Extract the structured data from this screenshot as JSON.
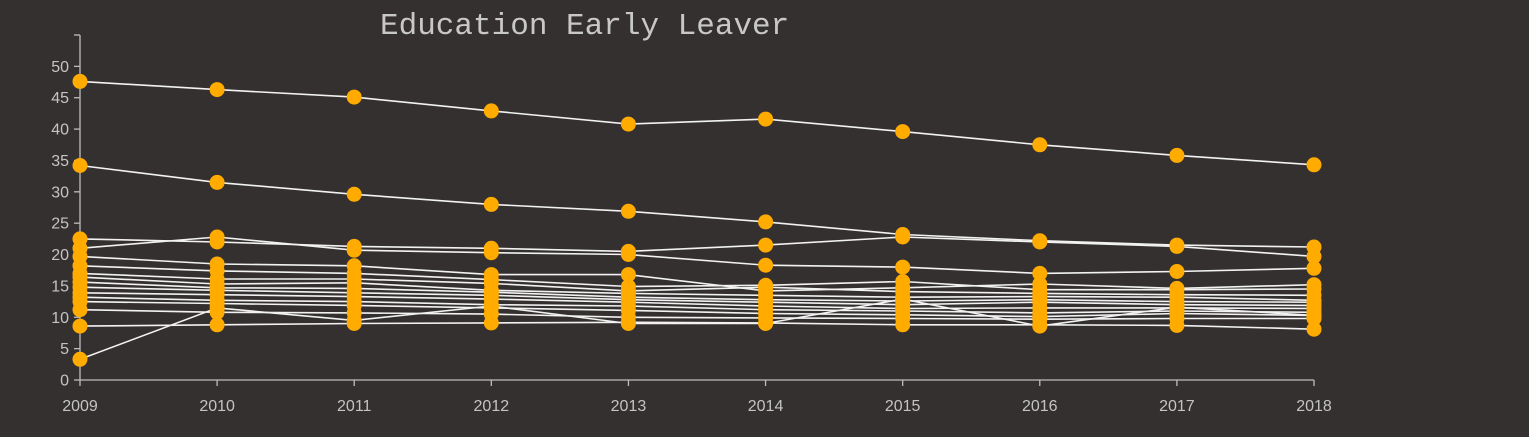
{
  "chart_data": {
    "type": "line",
    "title": "Education Early Leaver",
    "xlabel": "",
    "ylabel": "",
    "x": [
      2009,
      2010,
      2011,
      2012,
      2013,
      2014,
      2015,
      2016,
      2017,
      2018
    ],
    "ylim": [
      0,
      55
    ],
    "yticks": [
      0,
      5,
      10,
      15,
      20,
      25,
      30,
      35,
      40,
      45,
      50
    ],
    "grid": false,
    "colors": {
      "background": "#353030",
      "line": "#f2f2f2",
      "marker": "#ffab00",
      "axis": "#bdbdbd",
      "text": "#c4c4c4",
      "title": "#c8c8c8"
    },
    "series": [
      {
        "values": [
          47.6,
          46.3,
          45.1,
          42.9,
          40.8,
          41.6,
          39.6,
          37.5,
          35.8,
          34.3
        ]
      },
      {
        "values": [
          34.2,
          31.5,
          29.6,
          28.0,
          26.9,
          25.2,
          23.2,
          22.2,
          21.5,
          21.2
        ]
      },
      {
        "values": [
          22.5,
          22.0,
          21.3,
          21.0,
          20.5,
          21.5,
          22.8,
          22.0,
          21.3,
          19.7
        ]
      },
      {
        "values": [
          21.0,
          22.8,
          20.7,
          20.3,
          20.0,
          18.3,
          18.0,
          17.0,
          17.3,
          17.8
        ]
      },
      {
        "values": [
          19.7,
          18.5,
          18.2,
          16.8,
          16.8,
          14.2,
          14.7,
          15.3,
          14.6,
          15.2
        ]
      },
      {
        "values": [
          18.2,
          17.4,
          17.0,
          16.0,
          14.9,
          15.1,
          15.7,
          14.4,
          14.4,
          14.5
        ]
      },
      {
        "values": [
          17.0,
          16.1,
          16.1,
          15.4,
          14.2,
          14.8,
          14.1,
          13.8,
          13.6,
          13.5
        ]
      },
      {
        "values": [
          16.4,
          15.3,
          15.5,
          14.3,
          13.8,
          13.5,
          13.2,
          13.3,
          13.2,
          12.7
        ]
      },
      {
        "values": [
          15.6,
          14.7,
          14.6,
          14.0,
          13.2,
          12.8,
          12.6,
          12.8,
          12.5,
          12.4
        ]
      },
      {
        "values": [
          14.8,
          14.3,
          13.9,
          13.5,
          12.8,
          12.4,
          12.0,
          12.4,
          12.0,
          11.9
        ]
      },
      {
        "values": [
          13.9,
          13.6,
          13.3,
          12.9,
          12.4,
          11.8,
          11.4,
          11.5,
          11.5,
          11.4
        ]
      },
      {
        "values": [
          13.2,
          12.7,
          12.5,
          12.0,
          11.8,
          11.2,
          11.0,
          10.7,
          11.0,
          10.8
        ]
      },
      {
        "values": [
          12.5,
          12.2,
          11.9,
          11.5,
          11.1,
          10.6,
          10.4,
          10.1,
          10.6,
          10.3
        ]
      },
      {
        "values": [
          11.2,
          10.8,
          10.7,
          10.5,
          10.0,
          9.9,
          9.8,
          9.7,
          9.8,
          9.8
        ]
      },
      {
        "values": [
          8.6,
          8.8,
          9.0,
          9.1,
          9.2,
          9.1,
          8.8,
          8.8,
          8.7,
          8.1
        ]
      },
      {
        "values": [
          3.3,
          11.5,
          9.5,
          11.8,
          9.0,
          9.0,
          12.9,
          8.6,
          11.6,
          10.3
        ]
      }
    ]
  }
}
